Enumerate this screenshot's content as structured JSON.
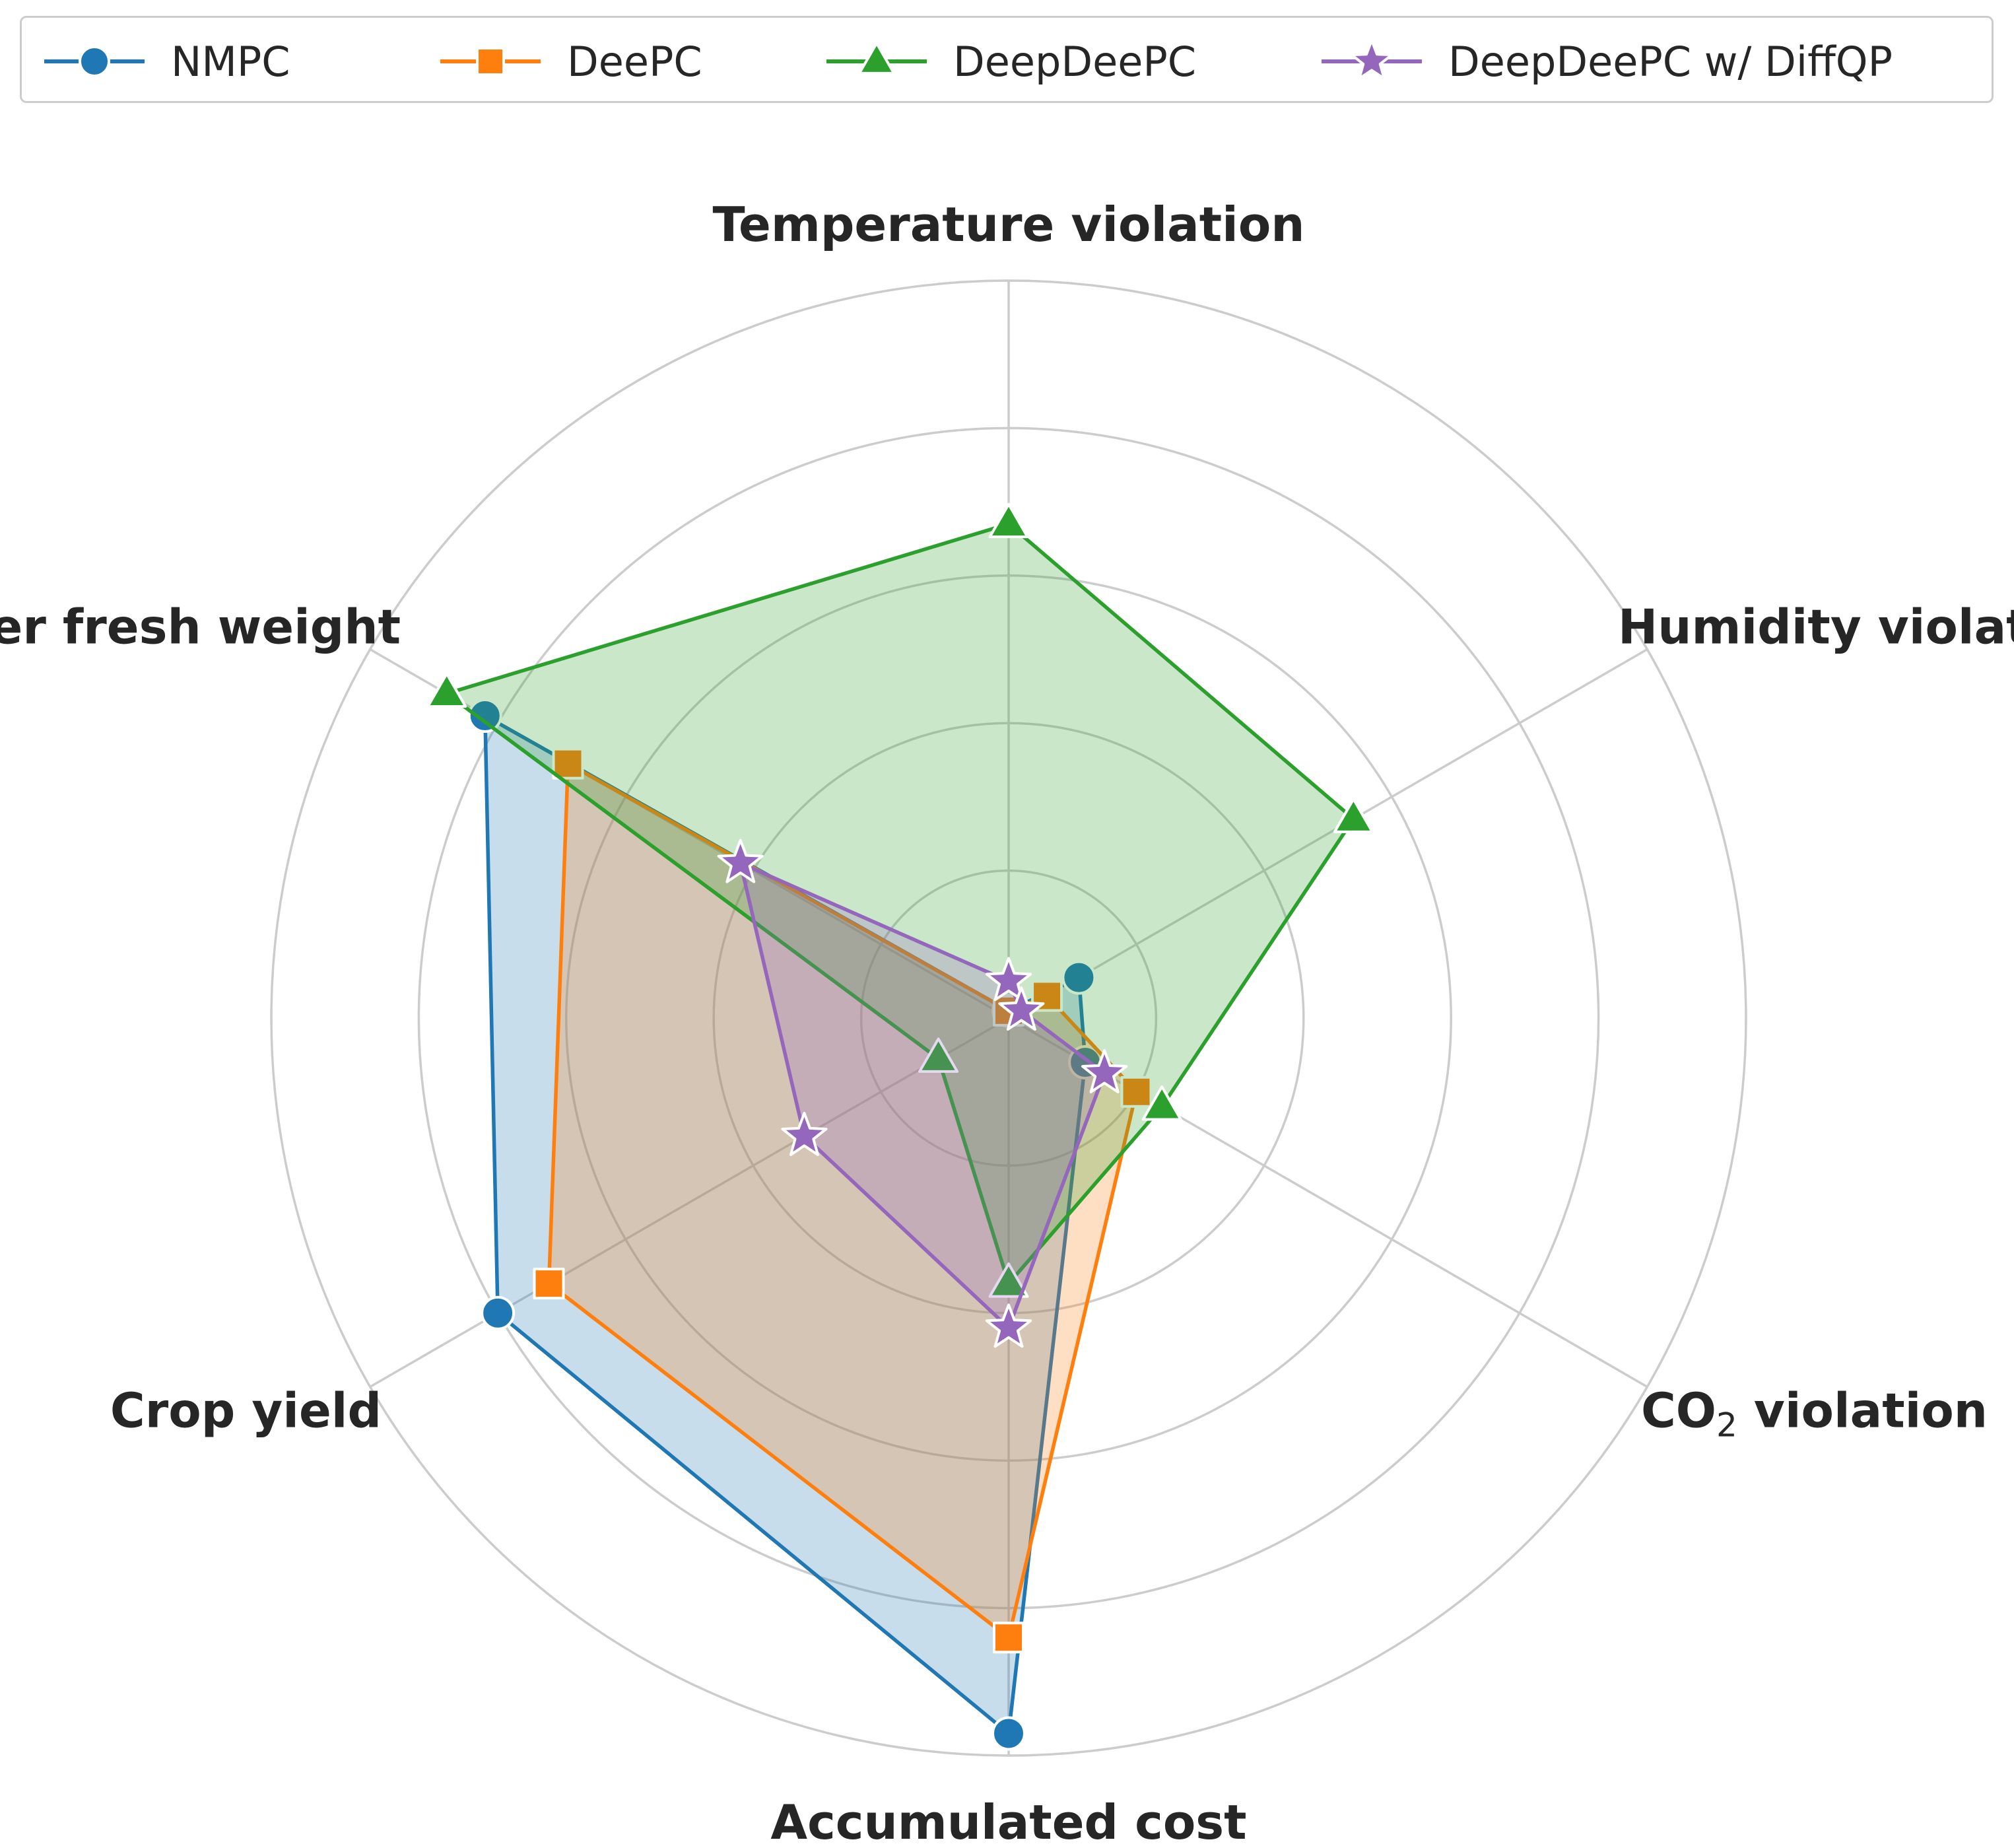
{
  "chart_data": {
    "type": "radar",
    "title": "",
    "axes": [
      "Temperature violation",
      "Humidity violation",
      "CO2 violation",
      "Accumulated cost",
      "Crop yield",
      "Cost per fresh weight"
    ],
    "axis_labels_display": [
      {
        "main": "Temperature violation"
      },
      {
        "main": "Humidity violation"
      },
      {
        "pre": "CO",
        "sub": "2",
        "post": " violation"
      },
      {
        "main": "Accumulated cost"
      },
      {
        "main": "Crop yield"
      },
      {
        "main": "Cost per fresh weight"
      }
    ],
    "rlim": [
      0,
      1
    ],
    "ring_levels": [
      0.2,
      0.4,
      0.6,
      0.8,
      1.0
    ],
    "grid": true,
    "legend_position": "top",
    "series": [
      {
        "name": "NMPC",
        "color": "#1f77b4",
        "marker": "circle",
        "values": [
          0.01,
          0.11,
          0.12,
          0.97,
          0.8,
          0.82
        ]
      },
      {
        "name": "DeePC",
        "color": "#ff7f0e",
        "marker": "square",
        "values": [
          0.01,
          0.06,
          0.2,
          0.84,
          0.72,
          0.69
        ]
      },
      {
        "name": "DeepDeePC",
        "color": "#2ca02c",
        "marker": "triangle",
        "values": [
          0.67,
          0.54,
          0.24,
          0.36,
          0.11,
          0.88
        ]
      },
      {
        "name": "DeepDeePC w/ DiffQP",
        "color": "#9467bd",
        "marker": "star",
        "values": [
          0.05,
          0.02,
          0.15,
          0.42,
          0.32,
          0.42
        ]
      }
    ]
  }
}
